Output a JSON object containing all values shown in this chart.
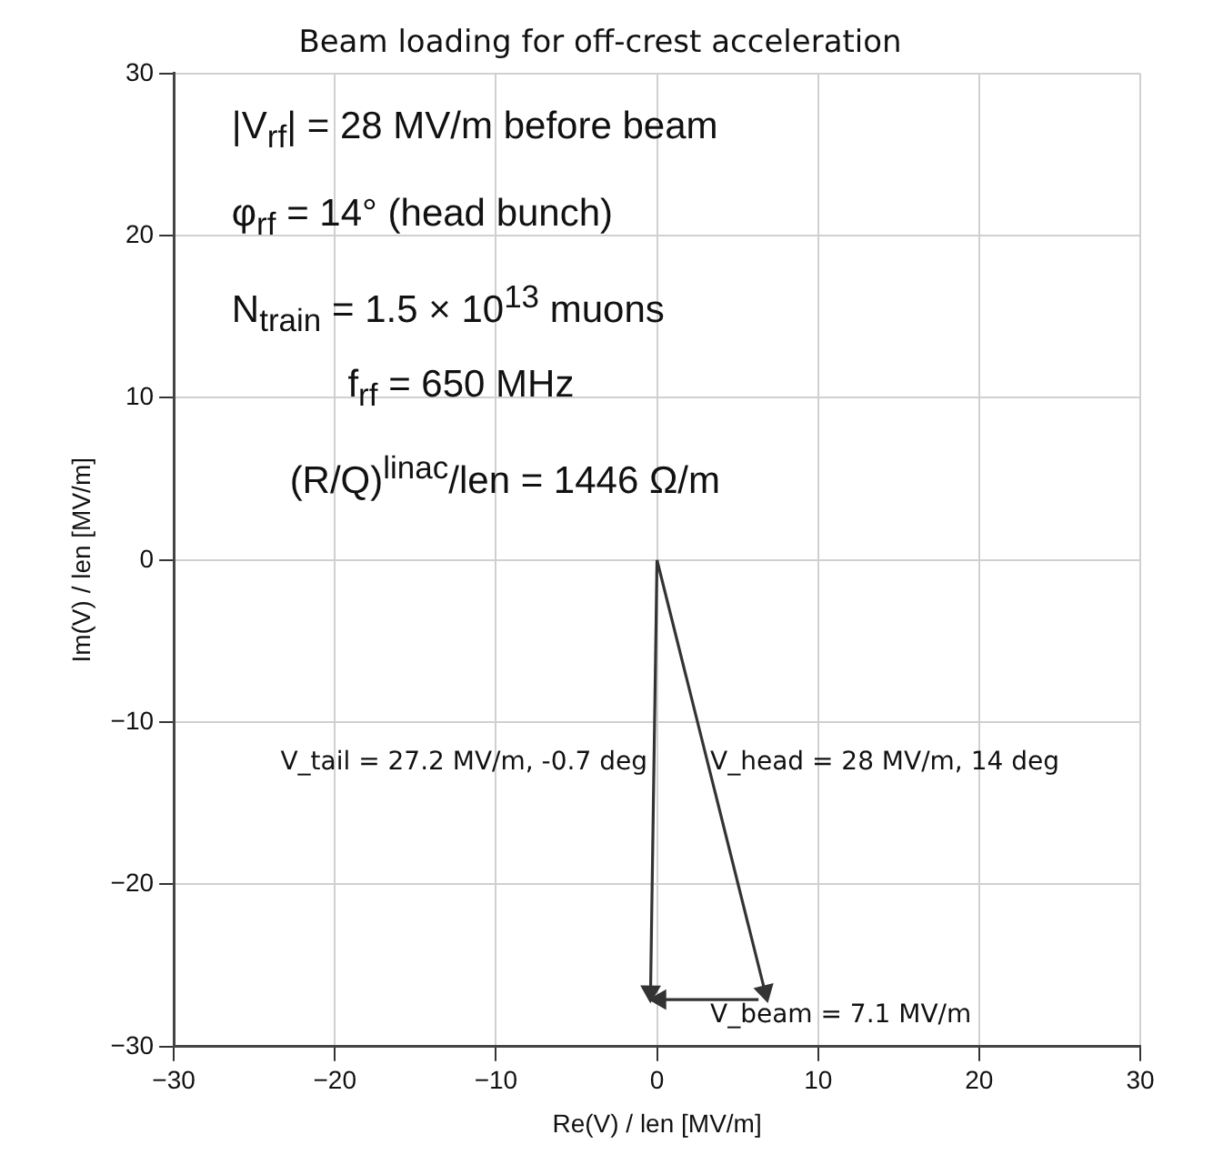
{
  "chart_data": {
    "type": "line",
    "title": "Beam loading for off-crest acceleration",
    "xlabel": "Re(V) / len [MV/m]",
    "ylabel": "Im(V) / len [MV/m]",
    "xlim": [
      -30,
      30
    ],
    "xticks": [
      -30,
      -20,
      -10,
      0,
      10,
      20,
      30
    ],
    "ylim": [
      -30,
      30
    ],
    "yticks": [
      -30,
      -20,
      -10,
      0,
      10,
      20,
      30
    ],
    "grid": true,
    "legend": false,
    "line_style": "solid",
    "series": [
      {
        "color": "#333333",
        "x": [
          0,
          6.7
        ],
        "values": [
          0,
          -26.6
        ]
      },
      {
        "color": "#333333",
        "x": [
          0,
          -0.4
        ],
        "values": [
          0,
          -26.6
        ]
      },
      {
        "color": "#333333",
        "x": [
          6.3,
          0.2
        ],
        "values": [
          -27.1,
          -27.1
        ]
      }
    ],
    "annotations": [
      "|V$_{rf}$| = 28 MV/m before beam",
      "φ$_{rf}$ = 14° (head bunch)",
      "N$_{train}$ = 1.5 × 10$^{13}$ muons",
      "f$_{rf}$ = 650 MHz",
      "(R/Q)$^{linac}$/len = 1446 Ω/m",
      "V_tail = 27.2 MV/m, -0.7 deg",
      "V_head = 28 MV/m, 14 deg",
      "V_beam = 7.1 MV/m"
    ]
  }
}
